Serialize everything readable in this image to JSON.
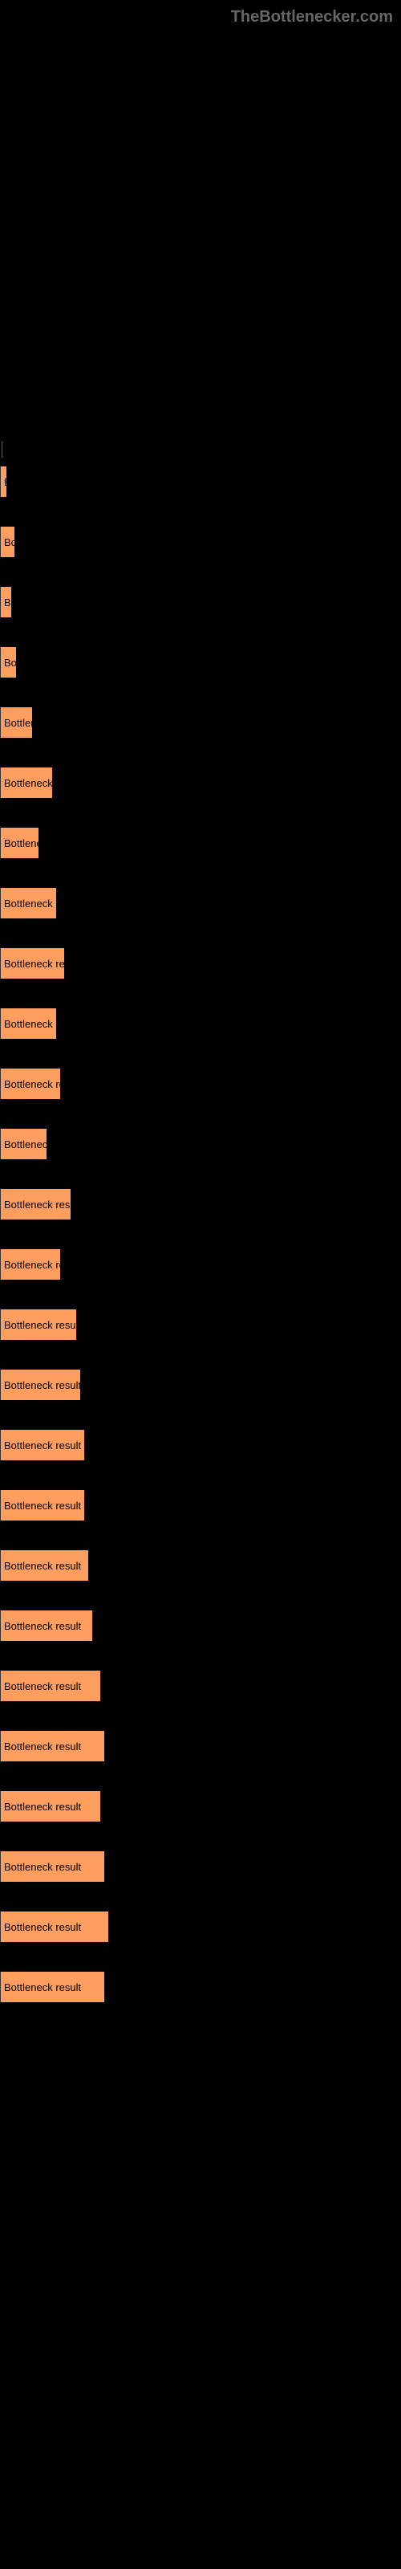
{
  "watermark": "TheBottlenecker.com",
  "chart": {
    "type": "bar",
    "bar_color": "#ff9e5e",
    "background_color": "#000000",
    "label_color": "#000000",
    "label_fontsize": 13,
    "bars": [
      {
        "label": "B",
        "width": 8
      },
      {
        "label": "Bo",
        "width": 18
      },
      {
        "label": "B",
        "width": 14
      },
      {
        "label": "Bo",
        "width": 20
      },
      {
        "label": "Bottlen",
        "width": 40
      },
      {
        "label": "Bottleneck r",
        "width": 65
      },
      {
        "label": "Bottlene",
        "width": 48
      },
      {
        "label": "Bottleneck re",
        "width": 70
      },
      {
        "label": "Bottleneck result",
        "width": 80
      },
      {
        "label": "Bottleneck re",
        "width": 70
      },
      {
        "label": "Bottleneck res",
        "width": 75
      },
      {
        "label": "Bottleneck",
        "width": 58
      },
      {
        "label": "Bottleneck result",
        "width": 88
      },
      {
        "label": "Bottleneck res",
        "width": 75
      },
      {
        "label": "Bottleneck result",
        "width": 95
      },
      {
        "label": "Bottleneck result",
        "width": 100
      },
      {
        "label": "Bottleneck result",
        "width": 105
      },
      {
        "label": "Bottleneck result",
        "width": 105
      },
      {
        "label": "Bottleneck result",
        "width": 110
      },
      {
        "label": "Bottleneck result",
        "width": 115
      },
      {
        "label": "Bottleneck result",
        "width": 125
      },
      {
        "label": "Bottleneck result",
        "width": 130
      },
      {
        "label": "Bottleneck result",
        "width": 125
      },
      {
        "label": "Bottleneck result",
        "width": 130
      },
      {
        "label": "Bottleneck result",
        "width": 135
      },
      {
        "label": "Bottleneck result",
        "width": 130
      }
    ]
  }
}
